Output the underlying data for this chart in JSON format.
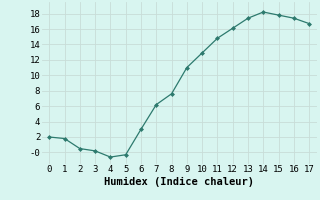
{
  "x": [
    0,
    1,
    2,
    3,
    4,
    5,
    6,
    7,
    8,
    9,
    10,
    11,
    12,
    13,
    14,
    15,
    16,
    17
  ],
  "y": [
    2.0,
    1.8,
    0.5,
    0.2,
    -0.6,
    -0.3,
    3.0,
    6.2,
    7.6,
    11.0,
    12.9,
    14.8,
    16.1,
    17.4,
    18.2,
    17.8,
    17.4,
    16.7
  ],
  "xlabel": "Humidex (Indice chaleur)",
  "xlim": [
    -0.5,
    17.5
  ],
  "ylim": [
    -1.5,
    19.5
  ],
  "xticks": [
    0,
    1,
    2,
    3,
    4,
    5,
    6,
    7,
    8,
    9,
    10,
    11,
    12,
    13,
    14,
    15,
    16,
    17
  ],
  "yticks": [
    0,
    2,
    4,
    6,
    8,
    10,
    12,
    14,
    16,
    18
  ],
  "ytick_labels": [
    "-0",
    "2",
    "4",
    "6",
    "8",
    "10",
    "12",
    "14",
    "16",
    "18"
  ],
  "line_color": "#2d7a6e",
  "marker": "D",
  "marker_size": 2.0,
  "bg_color": "#d8f5f0",
  "grid_color": "#c8ddd8",
  "tick_fontsize": 6.5,
  "label_fontsize": 7.5
}
